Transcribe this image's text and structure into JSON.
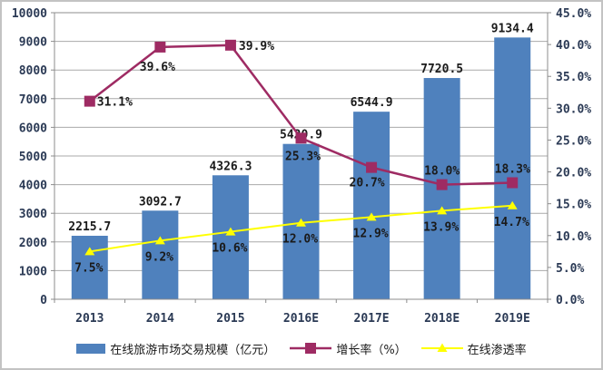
{
  "chart_data": {
    "type": "bar",
    "title": "",
    "xlabel": "",
    "ylabel_left": "",
    "ylabel_right": "",
    "grid": true,
    "legend_position": "bottom",
    "categories": [
      "2013",
      "2014",
      "2015",
      "2016E",
      "2017E",
      "2018E",
      "2019E"
    ],
    "series": [
      {
        "name": "在线旅游市场交易规模（亿元）",
        "type": "bar",
        "axis": "left",
        "color": "#4F81BD",
        "values": [
          2215.7,
          3092.7,
          4326.3,
          5420.9,
          6544.9,
          7720.5,
          9134.4
        ],
        "labels": [
          "2215.7",
          "3092.7",
          "4326.3",
          "5420.9",
          "6544.9",
          "7720.5",
          "9134.4"
        ]
      },
      {
        "name": "增长率（%）",
        "type": "line",
        "marker": "square",
        "axis": "right",
        "color": "#9E2B63",
        "values": [
          31.1,
          39.6,
          39.9,
          25.3,
          20.7,
          18.0,
          18.3
        ],
        "labels": [
          "31.1%",
          "39.6%",
          "39.9%",
          "25.3%",
          "20.7%",
          "18.0%",
          "18.3%"
        ]
      },
      {
        "name": "在线渗透率",
        "type": "line",
        "marker": "triangle",
        "axis": "right",
        "color": "#FFFF00",
        "values": [
          7.5,
          9.2,
          10.6,
          12.0,
          12.9,
          13.9,
          14.7
        ],
        "labels": [
          "7.5%",
          "9.2%",
          "10.6%",
          "12.0%",
          "12.9%",
          "13.9%",
          "14.7%"
        ]
      }
    ],
    "left_axis": {
      "min": 0,
      "max": 10000,
      "step": 1000,
      "tick_labels": [
        "0",
        "1000",
        "2000",
        "3000",
        "4000",
        "5000",
        "6000",
        "7000",
        "8000",
        "9000",
        "10000"
      ]
    },
    "right_axis": {
      "min": 0,
      "max": 45,
      "step": 5,
      "tick_labels": [
        "0.0%",
        "5.0%",
        "10.0%",
        "15.0%",
        "20.0%",
        "25.0%",
        "30.0%",
        "35.0%",
        "40.0%",
        "45.0%"
      ]
    }
  },
  "colors": {
    "background": "#FFFFFF",
    "frame_border": "#C3C3C3",
    "grid": "#A9A9A9",
    "plot_border": "#8C8C8C",
    "axis_text": "#2B3A55",
    "data_label": "#1A1A1A",
    "bar": "#4F81BD",
    "growth_line": "#9E2B63",
    "penetration_line": "#FFFF00"
  }
}
